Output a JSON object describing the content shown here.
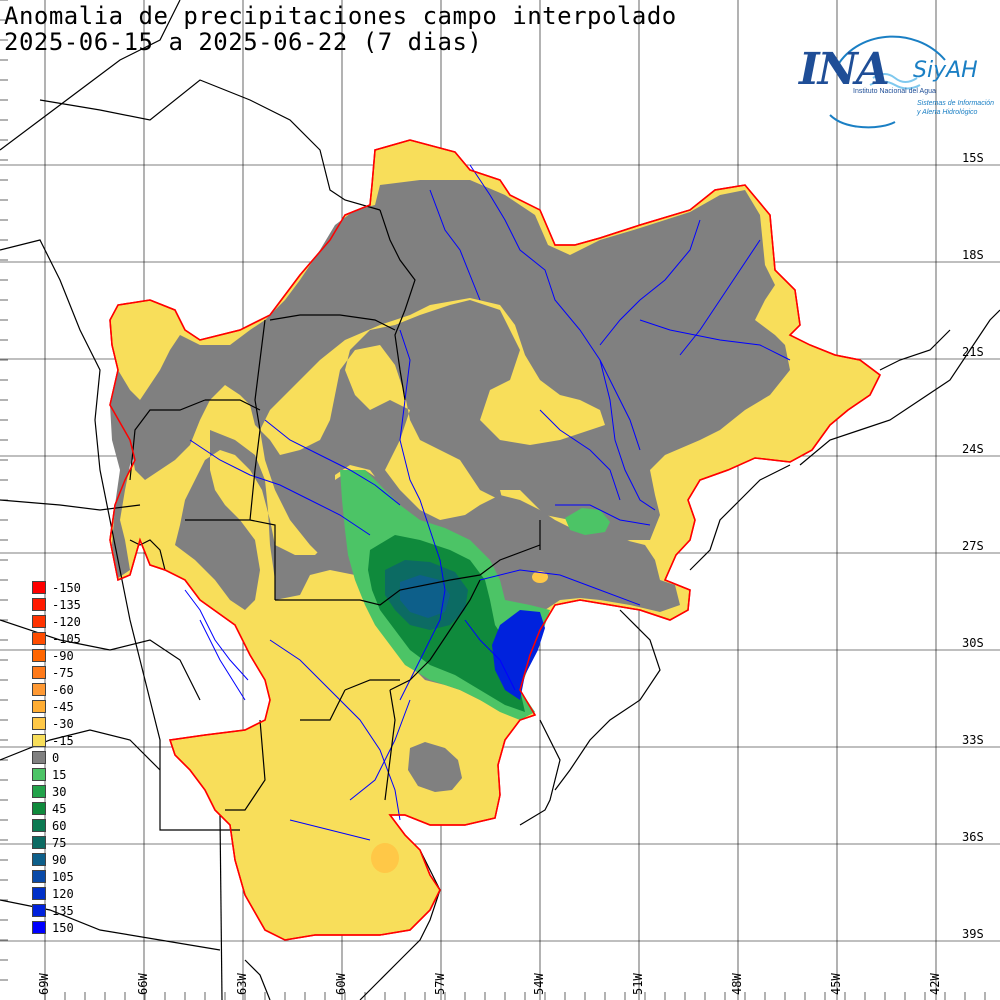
{
  "map": {
    "title_line1": "Anomalia de precipitaciones campo interpolado",
    "title_line2": "2025-06-15 a 2025-06-22 (7 dias)",
    "lat_labels": [
      "15S",
      "18S",
      "21S",
      "24S",
      "27S",
      "30S",
      "33S",
      "36S",
      "39S"
    ],
    "lon_labels": [
      "69W",
      "66W",
      "63W",
      "60W",
      "57W",
      "54W",
      "51W",
      "48W",
      "45W",
      "42W"
    ],
    "colors": {
      "dry": "#f8de5a",
      "neutral": "#808080",
      "wet1": "#4cc466",
      "wet2": "#0f8a3c",
      "wet3": "#0c6b63",
      "wet4": "#0d5f8a",
      "wet5": "#0022dd",
      "outline": "#ff0000",
      "rivers": "#0000ff",
      "borders": "#000000"
    },
    "legend": [
      {
        "label": "-150",
        "color": "#ff0000"
      },
      {
        "label": "-135",
        "color": "#ff1a00"
      },
      {
        "label": "-120",
        "color": "#ff3300"
      },
      {
        "label": "-105",
        "color": "#ff4d00"
      },
      {
        "label": "-90",
        "color": "#ff6600"
      },
      {
        "label": "-75",
        "color": "#ff7a1a"
      },
      {
        "label": "-60",
        "color": "#ff9933"
      },
      {
        "label": "-45",
        "color": "#ffad33"
      },
      {
        "label": "-30",
        "color": "#ffc847"
      },
      {
        "label": "-15",
        "color": "#f8de5a"
      },
      {
        "label": "0",
        "color": "#808080"
      },
      {
        "label": "15",
        "color": "#4cc466"
      },
      {
        "label": "30",
        "color": "#22a24a"
      },
      {
        "label": "45",
        "color": "#0f8a3c"
      },
      {
        "label": "60",
        "color": "#0c7a52"
      },
      {
        "label": "75",
        "color": "#0c6b63"
      },
      {
        "label": "90",
        "color": "#0d5f8a"
      },
      {
        "label": "105",
        "color": "#0a4aa8"
      },
      {
        "label": "120",
        "color": "#0030c8"
      },
      {
        "label": "135",
        "color": "#0022dd"
      },
      {
        "label": "150",
        "color": "#0000ff"
      }
    ]
  },
  "logo": {
    "name": "INA",
    "system": "SiyAH",
    "institution": "Instituto Nacional del Agua",
    "subtitle1": "Sistemas de Información",
    "subtitle2": "y Alerta Hidrológico"
  }
}
